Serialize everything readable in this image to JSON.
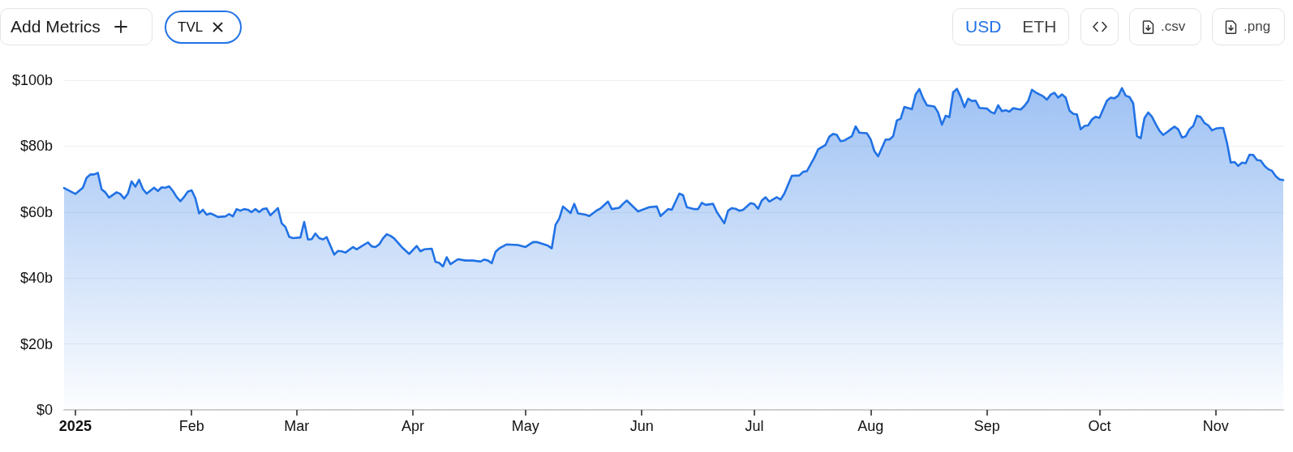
{
  "chart_data": {
    "type": "area",
    "color": "#2172e5",
    "x": [
      "2024-12-29",
      "2025-01-01",
      "2025-01-03",
      "2025-01-04",
      "2025-01-05",
      "2025-01-06",
      "2025-01-07",
      "2025-01-08",
      "2025-01-09",
      "2025-01-10",
      "2025-01-12",
      "2025-01-13",
      "2025-01-14",
      "2025-01-15",
      "2025-01-16",
      "2025-01-17",
      "2025-01-18",
      "2025-01-19",
      "2025-01-20",
      "2025-01-22",
      "2025-01-23",
      "2025-01-24",
      "2025-01-25",
      "2025-01-26",
      "2025-01-27",
      "2025-01-28",
      "2025-01-29",
      "2025-01-30",
      "2025-01-31",
      "2025-02-01",
      "2025-02-02",
      "2025-02-03",
      "2025-02-04",
      "2025-02-05",
      "2025-02-06",
      "2025-02-07",
      "2025-02-08",
      "2025-02-10",
      "2025-02-11",
      "2025-02-12",
      "2025-02-13",
      "2025-02-14",
      "2025-02-15",
      "2025-02-16",
      "2025-02-17",
      "2025-02-18",
      "2025-02-19",
      "2025-02-20",
      "2025-02-21",
      "2025-02-22",
      "2025-02-24",
      "2025-02-25",
      "2025-02-26",
      "2025-02-27",
      "2025-02-28",
      "2025-03-02",
      "2025-03-03",
      "2025-03-04",
      "2025-03-05",
      "2025-03-06",
      "2025-03-07",
      "2025-03-08",
      "2025-03-09",
      "2025-03-11",
      "2025-03-12",
      "2025-03-13",
      "2025-03-14",
      "2025-03-16",
      "2025-03-17",
      "2025-03-18",
      "2025-03-20",
      "2025-03-21",
      "2025-03-22",
      "2025-03-23",
      "2025-03-24",
      "2025-03-25",
      "2025-03-26",
      "2025-03-27",
      "2025-03-29",
      "2025-03-31",
      "2025-04-02",
      "2025-04-03",
      "2025-04-04",
      "2025-04-06",
      "2025-04-07",
      "2025-04-08",
      "2025-04-09",
      "2025-04-10",
      "2025-04-11",
      "2025-04-13",
      "2025-04-15",
      "2025-04-17",
      "2025-04-19",
      "2025-04-20",
      "2025-04-21",
      "2025-04-22",
      "2025-04-23",
      "2025-04-24",
      "2025-04-26",
      "2025-04-29",
      "2025-05-01",
      "2025-05-03",
      "2025-05-04",
      "2025-05-07",
      "2025-05-08",
      "2025-05-09",
      "2025-05-10",
      "2025-05-11",
      "2025-05-13",
      "2025-05-14",
      "2025-05-15",
      "2025-05-17",
      "2025-05-18",
      "2025-05-20",
      "2025-05-21",
      "2025-05-23",
      "2025-05-24",
      "2025-05-26",
      "2025-05-27",
      "2025-05-28",
      "2025-05-31",
      "2025-06-03",
      "2025-06-05",
      "2025-06-06",
      "2025-06-08",
      "2025-06-09",
      "2025-06-11",
      "2025-06-12",
      "2025-06-13",
      "2025-06-15",
      "2025-06-16",
      "2025-06-17",
      "2025-06-18",
      "2025-06-20",
      "2025-06-21",
      "2025-06-23",
      "2025-06-24",
      "2025-06-25",
      "2025-06-26",
      "2025-06-27",
      "2025-06-28",
      "2025-06-30",
      "2025-07-01",
      "2025-07-02",
      "2025-07-03",
      "2025-07-04",
      "2025-07-05",
      "2025-07-07",
      "2025-07-08",
      "2025-07-09",
      "2025-07-11",
      "2025-07-13",
      "2025-07-14",
      "2025-07-15",
      "2025-07-17",
      "2025-07-18",
      "2025-07-20",
      "2025-07-21",
      "2025-07-22",
      "2025-07-23",
      "2025-07-24",
      "2025-07-25",
      "2025-07-27",
      "2025-07-28",
      "2025-07-29",
      "2025-07-31",
      "2025-08-01",
      "2025-08-02",
      "2025-08-03",
      "2025-08-05",
      "2025-08-06",
      "2025-08-07",
      "2025-08-08",
      "2025-08-09",
      "2025-08-10",
      "2025-08-12",
      "2025-08-13",
      "2025-08-14",
      "2025-08-15",
      "2025-08-16",
      "2025-08-18",
      "2025-08-19",
      "2025-08-20",
      "2025-08-21",
      "2025-08-22",
      "2025-08-23",
      "2025-08-24",
      "2025-08-25",
      "2025-08-26",
      "2025-08-27",
      "2025-08-28",
      "2025-08-29",
      "2025-08-30",
      "2025-09-01",
      "2025-09-02",
      "2025-09-03",
      "2025-09-04",
      "2025-09-05",
      "2025-09-06",
      "2025-09-07",
      "2025-09-08",
      "2025-09-10",
      "2025-09-11",
      "2025-09-12",
      "2025-09-13",
      "2025-09-14",
      "2025-09-16",
      "2025-09-17",
      "2025-09-18",
      "2025-09-19",
      "2025-09-20",
      "2025-09-21",
      "2025-09-22",
      "2025-09-23",
      "2025-09-24",
      "2025-09-25",
      "2025-09-26",
      "2025-09-27",
      "2025-09-28",
      "2025-09-29",
      "2025-09-30",
      "2025-10-01",
      "2025-10-02",
      "2025-10-03",
      "2025-10-04",
      "2025-10-05",
      "2025-10-06",
      "2025-10-07",
      "2025-10-08",
      "2025-10-09",
      "2025-10-10",
      "2025-10-11",
      "2025-10-12",
      "2025-10-13",
      "2025-10-14",
      "2025-10-15",
      "2025-10-16",
      "2025-10-17",
      "2025-10-18",
      "2025-10-19",
      "2025-10-20",
      "2025-10-21",
      "2025-10-22",
      "2025-10-23",
      "2025-10-24",
      "2025-10-25",
      "2025-10-26",
      "2025-10-27",
      "2025-10-28",
      "2025-10-29",
      "2025-10-30",
      "2025-10-31",
      "2025-11-01",
      "2025-11-02",
      "2025-11-03",
      "2025-11-04",
      "2025-11-05",
      "2025-11-06",
      "2025-11-07",
      "2025-11-08",
      "2025-11-09",
      "2025-11-10",
      "2025-11-11",
      "2025-11-12",
      "2025-11-13",
      "2025-11-14",
      "2025-11-15",
      "2025-11-16",
      "2025-11-17",
      "2025-11-18",
      "2025-11-19"
    ],
    "values": [
      67.3,
      65.5,
      67.4,
      70.4,
      71.4,
      71.4,
      71.9,
      66.9,
      66.0,
      64.4,
      66.0,
      65.5,
      64.1,
      65.6,
      69.3,
      67.7,
      69.8,
      67.0,
      65.6,
      67.4,
      66.4,
      67.5,
      67.4,
      67.8,
      66.4,
      64.6,
      63.3,
      64.6,
      66.2,
      66.6,
      64.2,
      59.6,
      60.7,
      59.2,
      59.6,
      59.1,
      58.5,
      58.7,
      59.4,
      58.7,
      60.9,
      60.4,
      60.9,
      60.7,
      60.0,
      60.9,
      60.0,
      60.9,
      61.1,
      59.0,
      61.2,
      56.6,
      55.5,
      52.5,
      52.1,
      52.3,
      57.0,
      51.7,
      51.8,
      53.5,
      52.1,
      51.7,
      52.4,
      47.1,
      48.2,
      48.1,
      47.7,
      49.4,
      48.7,
      49.4,
      50.8,
      49.6,
      49.4,
      50.2,
      52.0,
      53.3,
      52.8,
      52.0,
      49.4,
      47.3,
      49.7,
      48.1,
      48.7,
      48.9,
      44.9,
      44.6,
      43.5,
      46.3,
      44.2,
      45.7,
      45.3,
      45.3,
      45.0,
      45.6,
      45.3,
      44.5,
      47.9,
      49.0,
      50.2,
      50.0,
      49.4,
      50.9,
      50.9,
      49.8,
      49.0,
      56.1,
      58.0,
      61.7,
      59.7,
      62.5,
      59.6,
      59.2,
      58.8,
      60.5,
      61.1,
      63.2,
      60.9,
      61.3,
      62.5,
      63.5,
      60.2,
      61.5,
      61.7,
      58.8,
      60.9,
      60.7,
      65.6,
      65.1,
      61.5,
      60.9,
      60.9,
      62.8,
      62.2,
      62.5,
      60.0,
      56.6,
      60.4,
      61.2,
      61.0,
      60.4,
      60.7,
      62.7,
      62.4,
      61.0,
      63.5,
      64.5,
      63.2,
      64.5,
      63.8,
      65.6,
      71.0,
      71.1,
      72.2,
      72.4,
      76.5,
      79.0,
      80.4,
      82.9,
      83.7,
      83.4,
      81.5,
      81.7,
      83.0,
      86.0,
      84.1,
      83.9,
      82.1,
      78.5,
      76.9,
      82.0,
      82.0,
      83.0,
      87.8,
      88.3,
      91.9,
      91.2,
      95.7,
      97.3,
      94.5,
      92.4,
      92.0,
      90.2,
      86.5,
      89.2,
      88.8,
      96.3,
      97.4,
      95.0,
      91.8,
      94.4,
      93.7,
      93.8,
      91.6,
      91.4,
      90.4,
      89.9,
      92.4,
      90.6,
      90.9,
      90.5,
      91.5,
      91.1,
      92.2,
      93.7,
      97.1,
      96.3,
      95.1,
      94.1,
      95.6,
      96.2,
      94.7,
      95.7,
      94.7,
      90.8,
      89.8,
      89.6,
      85.1,
      86.1,
      86.3,
      88.1,
      88.9,
      88.6,
      91.2,
      93.8,
      94.7,
      94.5,
      95.3,
      97.6,
      95.3,
      94.9,
      93.0,
      83.0,
      82.4,
      88.5,
      90.2,
      88.9,
      86.7,
      84.7,
      83.4,
      84.2,
      85.1,
      85.9,
      85.1,
      82.6,
      83.0,
      85.1,
      86.1,
      89.2,
      88.8,
      87.0,
      86.3,
      84.8,
      85.3,
      85.5,
      85.5,
      81.0,
      75.0,
      75.2,
      74.0,
      75.0,
      74.8,
      77.4,
      77.3,
      75.8,
      75.6,
      74.0,
      73.0,
      72.5,
      70.9,
      69.9,
      69.7
    ],
    "xlim": [
      "2024-12-29",
      "2025-11-19"
    ],
    "xticks": [
      {
        "value": "2025-01-01",
        "label": "2025"
      },
      {
        "value": "2025-02-01",
        "label": "Feb"
      },
      {
        "value": "2025-03-01",
        "label": "Mar"
      },
      {
        "value": "2025-04-01",
        "label": "Apr"
      },
      {
        "value": "2025-05-01",
        "label": "May"
      },
      {
        "value": "2025-06-01",
        "label": "Jun"
      },
      {
        "value": "2025-07-01",
        "label": "Jul"
      },
      {
        "value": "2025-08-01",
        "label": "Aug"
      },
      {
        "value": "2025-09-01",
        "label": "Sep"
      },
      {
        "value": "2025-10-01",
        "label": "Oct"
      },
      {
        "value": "2025-11-01",
        "label": "Nov"
      }
    ],
    "ylim": [
      0,
      100
    ],
    "yticks": [
      {
        "value": 0,
        "label": "$0"
      },
      {
        "value": 20,
        "label": "$20b"
      },
      {
        "value": 40,
        "label": "$40b"
      },
      {
        "value": 60,
        "label": "$60b"
      },
      {
        "value": 80,
        "label": "$80b"
      },
      {
        "value": 100,
        "label": "$100b"
      }
    ],
    "grid": "y",
    "annotations": [
      "Add Metrics",
      "TVL",
      "USD",
      "ETH",
      ".csv",
      ".png"
    ]
  }
}
